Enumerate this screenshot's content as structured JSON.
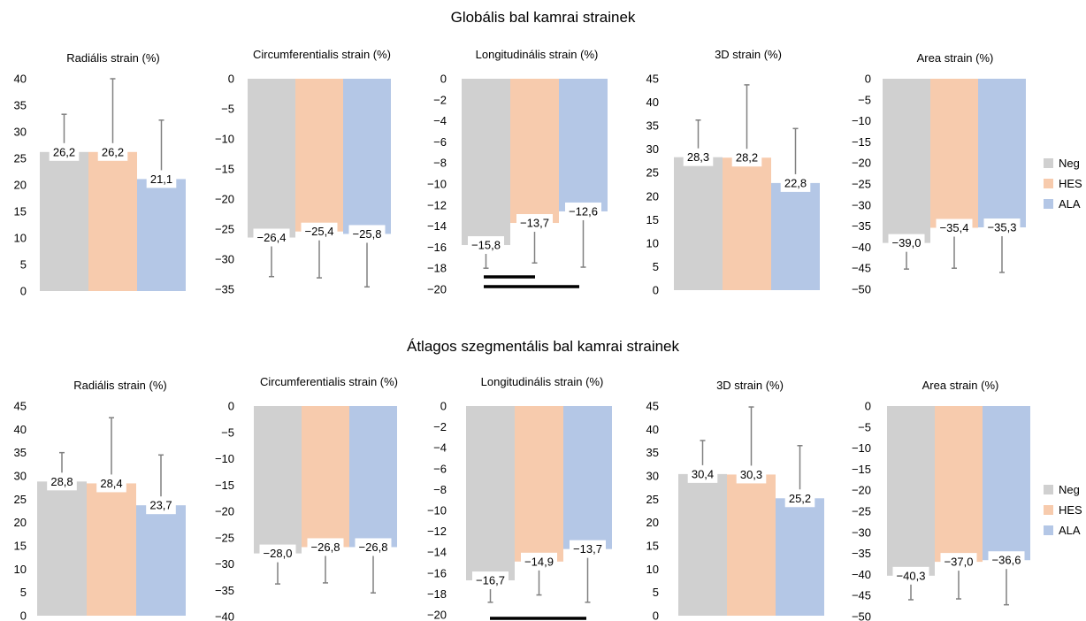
{
  "sections": [
    {
      "title": "Globális bal kamrai strainek"
    },
    {
      "title": "Átlagos szegmentális bal kamrai strainek"
    }
  ],
  "legend": [
    {
      "label": "Neg",
      "color": "#d0d0d0"
    },
    {
      "label": "HES",
      "color": "#f7cbad"
    },
    {
      "label": "ALA",
      "color": "#b4c7e6"
    }
  ],
  "chart_data": [
    {
      "type": "bar",
      "section": 0,
      "title": "Radiális strain (%)",
      "categories": [
        "Neg",
        "HES",
        "ALA"
      ],
      "values": [
        26.2,
        26.2,
        21.1
      ],
      "value_labels": [
        "26,2",
        "26,2",
        "21,1"
      ],
      "error_bar_tops": [
        33.3,
        40.0,
        32.2
      ],
      "ylim": [
        0,
        40
      ],
      "yticks": [
        0,
        5,
        10,
        15,
        20,
        25,
        30,
        35,
        40
      ],
      "significance_bars": []
    },
    {
      "type": "bar",
      "section": 0,
      "title": "Circumferentialis strain (%)",
      "categories": [
        "Neg",
        "HES",
        "ALA"
      ],
      "values": [
        -26.4,
        -25.4,
        -25.8
      ],
      "value_labels": [
        "−26,4",
        "−25,4",
        "−25,8"
      ],
      "error_bar_ends": [
        -32.9,
        -33.1,
        -34.6
      ],
      "ylim": [
        -35,
        0
      ],
      "yticks": [
        0,
        -5,
        -10,
        -15,
        -20,
        -25,
        -30,
        -35
      ],
      "significance_bars": []
    },
    {
      "type": "bar",
      "section": 0,
      "title": "Longitudinális strain (%)",
      "categories": [
        "Neg",
        "HES",
        "ALA"
      ],
      "values": [
        -15.8,
        -13.7,
        -12.6
      ],
      "value_labels": [
        "−15,8",
        "−13,7",
        "−12,6"
      ],
      "error_bar_ends": [
        -18.0,
        -17.5,
        -17.9
      ],
      "ylim": [
        -20,
        0
      ],
      "yticks": [
        0,
        -2,
        -4,
        -6,
        -8,
        -10,
        -12,
        -14,
        -16,
        -18,
        -20
      ],
      "significance_bars": [
        {
          "from": "Neg",
          "to": "HES"
        },
        {
          "from": "Neg",
          "to": "ALA"
        }
      ]
    },
    {
      "type": "bar",
      "section": 0,
      "title": "3D strain (%)",
      "categories": [
        "Neg",
        "HES",
        "ALA"
      ],
      "values": [
        28.3,
        28.2,
        22.8
      ],
      "value_labels": [
        "28,3",
        "28,2",
        "22,8"
      ],
      "error_bar_tops": [
        36.2,
        43.7,
        34.4
      ],
      "ylim": [
        0,
        45
      ],
      "yticks": [
        0,
        5,
        10,
        15,
        20,
        25,
        30,
        35,
        40,
        45
      ],
      "significance_bars": []
    },
    {
      "type": "bar",
      "section": 0,
      "title": "Area strain (%)",
      "categories": [
        "Neg",
        "HES",
        "ALA"
      ],
      "values": [
        -39.0,
        -35.4,
        -35.3
      ],
      "value_labels": [
        "−39,0",
        "−35,4",
        "−35,3"
      ],
      "error_bar_ends": [
        -45.2,
        -45.0,
        -46.0
      ],
      "ylim": [
        -50,
        0
      ],
      "yticks": [
        0,
        -5,
        -10,
        -15,
        -20,
        -25,
        -30,
        -35,
        -40,
        -45,
        -50
      ],
      "significance_bars": []
    },
    {
      "type": "bar",
      "section": 1,
      "title": "Radiális strain (%)",
      "categories": [
        "Neg",
        "HES",
        "ALA"
      ],
      "values": [
        28.8,
        28.4,
        23.7
      ],
      "value_labels": [
        "28,8",
        "28,4",
        "23,7"
      ],
      "error_bar_tops": [
        35.0,
        42.5,
        34.5
      ],
      "ylim": [
        0,
        45
      ],
      "yticks": [
        0,
        5,
        10,
        15,
        20,
        25,
        30,
        35,
        40,
        45
      ],
      "significance_bars": []
    },
    {
      "type": "bar",
      "section": 1,
      "title": "Circumferentialis strain (%)",
      "categories": [
        "Neg",
        "HES",
        "ALA"
      ],
      "values": [
        -28.0,
        -26.8,
        -26.8
      ],
      "value_labels": [
        "−28,0",
        "−26,8",
        "−26,8"
      ],
      "error_bar_ends": [
        -33.8,
        -33.6,
        -35.5
      ],
      "ylim": [
        -40,
        0
      ],
      "yticks": [
        0,
        -5,
        -10,
        -15,
        -20,
        -25,
        -30,
        -35,
        -40
      ],
      "significance_bars": []
    },
    {
      "type": "bar",
      "section": 1,
      "title": "Longitudinális strain (%)",
      "categories": [
        "Neg",
        "HES",
        "ALA"
      ],
      "values": [
        -16.7,
        -14.9,
        -13.7
      ],
      "value_labels": [
        "−16,7",
        "−14,9",
        "−13,7"
      ],
      "error_bar_ends": [
        -18.8,
        -18.1,
        -18.8
      ],
      "ylim": [
        -20,
        0
      ],
      "yticks": [
        0,
        -2,
        -4,
        -6,
        -8,
        -10,
        -12,
        -14,
        -16,
        -18,
        -20
      ],
      "significance_bars": [
        {
          "from": "Neg",
          "to": "ALA"
        }
      ]
    },
    {
      "type": "bar",
      "section": 1,
      "title": "3D strain (%)",
      "categories": [
        "Neg",
        "HES",
        "ALA"
      ],
      "values": [
        30.4,
        30.3,
        25.2
      ],
      "value_labels": [
        "30,4",
        "30,3",
        "25,2"
      ],
      "error_bar_tops": [
        37.6,
        44.8,
        36.5
      ],
      "ylim": [
        0,
        45
      ],
      "yticks": [
        0,
        5,
        10,
        15,
        20,
        25,
        30,
        35,
        40,
        45
      ],
      "significance_bars": []
    },
    {
      "type": "bar",
      "section": 1,
      "title": "Area strain (%)",
      "categories": [
        "Neg",
        "HES",
        "ALA"
      ],
      "values": [
        -40.3,
        -37.0,
        -36.6
      ],
      "value_labels": [
        "−40,3",
        "−37,0",
        "−36,6"
      ],
      "error_bar_ends": [
        -46.0,
        -45.8,
        -47.2
      ],
      "ylim": [
        -50,
        0
      ],
      "yticks": [
        0,
        -5,
        -10,
        -15,
        -20,
        -25,
        -30,
        -35,
        -40,
        -45,
        -50
      ],
      "significance_bars": []
    }
  ]
}
